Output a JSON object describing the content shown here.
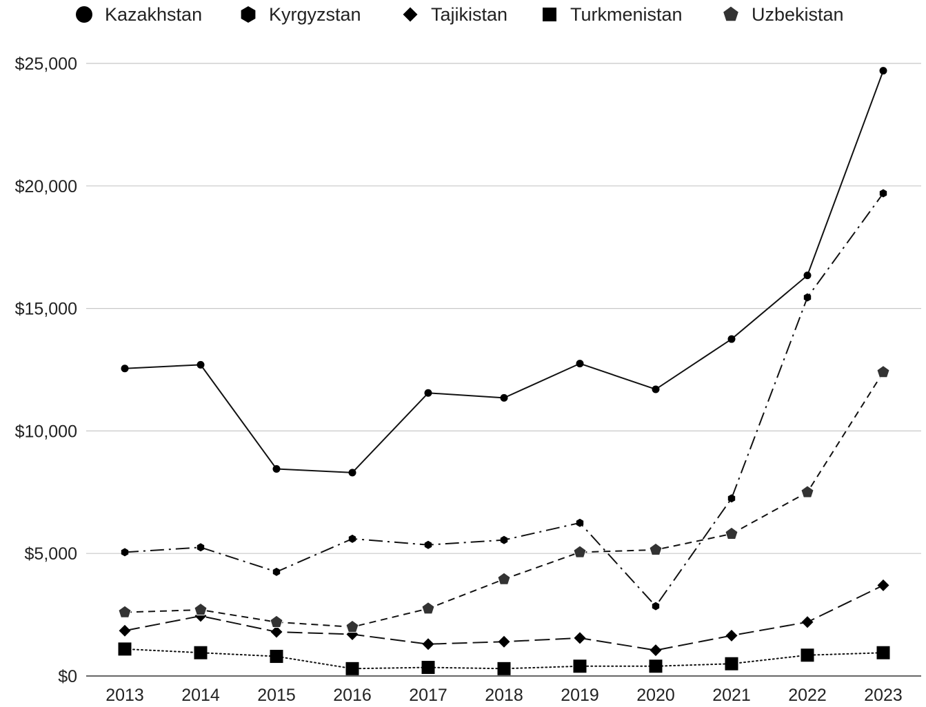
{
  "chart_data": {
    "type": "line",
    "title": "",
    "xlabel": "",
    "ylabel": "",
    "x": [
      "2013",
      "2014",
      "2015",
      "2016",
      "2017",
      "2018",
      "2019",
      "2020",
      "2021",
      "2022",
      "2023"
    ],
    "ylim": [
      0,
      25000
    ],
    "y_ticks": [
      0,
      5000,
      10000,
      15000,
      20000,
      25000
    ],
    "y_tick_labels": [
      "$0",
      "$5,000",
      "$10,000",
      "$15,000",
      "$20,000",
      "$25,000"
    ],
    "grid": "horizontal",
    "legend_position": "top",
    "series": [
      {
        "name": "Kazakhstan",
        "marker": "circle",
        "line_style": "solid",
        "color": "#000000",
        "values": [
          12550,
          12700,
          8450,
          8300,
          11550,
          11350,
          12750,
          11700,
          13750,
          16350,
          24700
        ]
      },
      {
        "name": "Kyrgyzstan",
        "marker": "hexagon",
        "line_style": "dash-dot",
        "color": "#000000",
        "values": [
          5050,
          5250,
          4250,
          5600,
          5350,
          5550,
          6250,
          2850,
          7250,
          15450,
          19700
        ]
      },
      {
        "name": "Tajikistan",
        "marker": "diamond",
        "line_style": "long-dash",
        "color": "#000000",
        "values": [
          1850,
          2450,
          1800,
          1700,
          1300,
          1400,
          1550,
          1050,
          1650,
          2200,
          3700
        ]
      },
      {
        "name": "Turkmenistan",
        "marker": "square",
        "line_style": "dotted",
        "color": "#000000",
        "values": [
          1100,
          950,
          800,
          300,
          350,
          300,
          400,
          400,
          500,
          850,
          950
        ]
      },
      {
        "name": "Uzbekistan",
        "marker": "pentagon",
        "line_style": "dashed",
        "color": "#333333",
        "values": [
          2600,
          2700,
          2200,
          2000,
          2750,
          3950,
          5050,
          5150,
          5800,
          7500,
          12400
        ]
      }
    ]
  }
}
